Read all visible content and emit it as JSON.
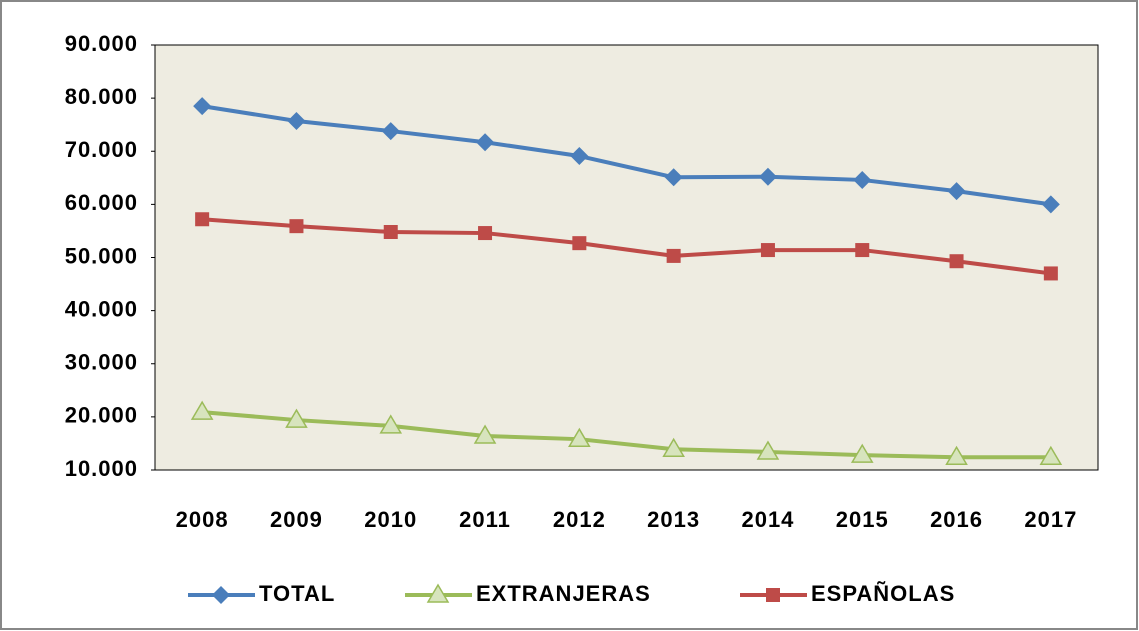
{
  "chart_data": {
    "type": "line",
    "categories": [
      "2008",
      "2009",
      "2010",
      "2011",
      "2012",
      "2013",
      "2014",
      "2015",
      "2016",
      "2017"
    ],
    "series": [
      {
        "name": "TOTAL",
        "color": "#4a7ebb",
        "marker": "diamond",
        "values": [
          78500,
          75700,
          73800,
          71700,
          69100,
          65100,
          65200,
          64600,
          62500,
          60000
        ]
      },
      {
        "name": "EXTRANJERAS",
        "color": "#9bbb59",
        "marker": "triangle",
        "values": [
          20900,
          19400,
          18300,
          16400,
          15800,
          13900,
          13400,
          12800,
          12400,
          12400
        ]
      },
      {
        "name": "ESPAÑOLAS",
        "color": "#be4b48",
        "marker": "square",
        "values": [
          57200,
          55900,
          54800,
          54600,
          52700,
          50300,
          51400,
          51400,
          49300,
          47000
        ]
      }
    ],
    "ylim": [
      10000,
      90000
    ],
    "yticks": [
      {
        "value": 10000,
        "label": "10.000"
      },
      {
        "value": 20000,
        "label": "20.000"
      },
      {
        "value": 30000,
        "label": "30.000"
      },
      {
        "value": 40000,
        "label": "40.000"
      },
      {
        "value": 50000,
        "label": "50.000"
      },
      {
        "value": 60000,
        "label": "60.000"
      },
      {
        "value": 70000,
        "label": "70.000"
      },
      {
        "value": 80000,
        "label": "80.000"
      },
      {
        "value": 90000,
        "label": "90.000"
      }
    ],
    "legend": "bottom",
    "background": "#eeece1"
  }
}
